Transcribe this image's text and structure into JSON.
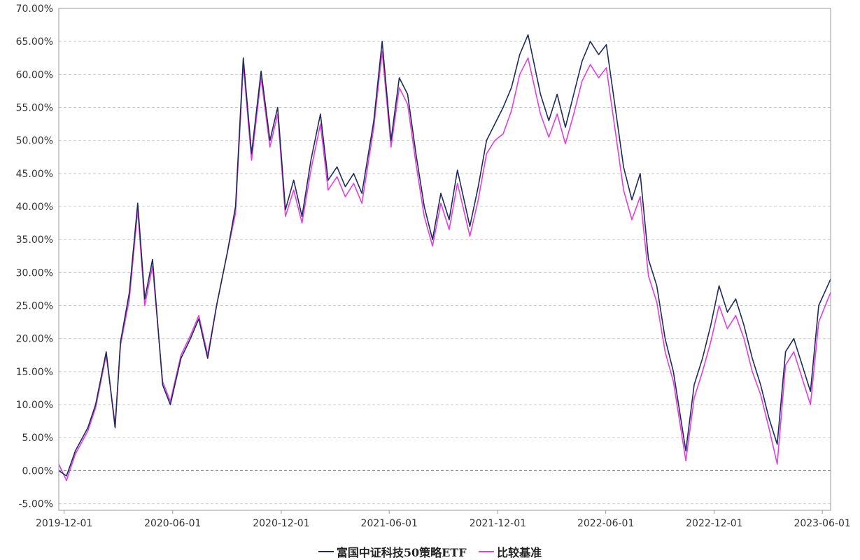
{
  "chart_data": {
    "type": "line",
    "title": "",
    "xlabel": "",
    "ylabel": "",
    "x_ticks": [
      "2019-12-01",
      "2020-06-01",
      "2020-12-01",
      "2021-06-01",
      "2021-12-01",
      "2022-06-01",
      "2022-12-01",
      "2023-06-01"
    ],
    "y_ticks": [
      "70.00%",
      "65.00%",
      "60.00%",
      "55.00%",
      "50.00%",
      "45.00%",
      "40.00%",
      "35.00%",
      "30.00%",
      "25.00%",
      "20.00%",
      "15.00%",
      "10.00%",
      "5.00%",
      "0.00%",
      "-5.00%"
    ],
    "xlim": [
      "2019-11-22",
      "2023-06-15"
    ],
    "ylim": [
      -6,
      70
    ],
    "grid": true,
    "legend_position": "bottom",
    "series": [
      {
        "name": "富国中证科技50策略ETF",
        "color": "#1f2a5c",
        "points": [
          [
            "2019-11-22",
            0.0
          ],
          [
            "2019-12-05",
            -0.8
          ],
          [
            "2019-12-20",
            3.0
          ],
          [
            "2020-01-10",
            6.5
          ],
          [
            "2020-01-23",
            10.0
          ],
          [
            "2020-02-10",
            18.0
          ],
          [
            "2020-02-25",
            6.5
          ],
          [
            "2020-03-05",
            19.5
          ],
          [
            "2020-03-20",
            27.0
          ],
          [
            "2020-04-03",
            40.5
          ],
          [
            "2020-04-15",
            26.0
          ],
          [
            "2020-04-28",
            32.0
          ],
          [
            "2020-05-15",
            13.0
          ],
          [
            "2020-05-28",
            10.0
          ],
          [
            "2020-06-15",
            17.0
          ],
          [
            "2020-07-01",
            20.0
          ],
          [
            "2020-07-15",
            23.0
          ],
          [
            "2020-07-30",
            17.0
          ],
          [
            "2020-08-14",
            25.0
          ],
          [
            "2020-09-01",
            33.0
          ],
          [
            "2020-09-15",
            40.0
          ],
          [
            "2020-09-28",
            62.5
          ],
          [
            "2020-10-12",
            48.0
          ],
          [
            "2020-10-28",
            60.5
          ],
          [
            "2020-11-12",
            50.0
          ],
          [
            "2020-11-25",
            55.0
          ],
          [
            "2020-12-08",
            39.5
          ],
          [
            "2020-12-22",
            44.0
          ],
          [
            "2021-01-05",
            38.5
          ],
          [
            "2021-01-20",
            47.0
          ],
          [
            "2021-02-05",
            54.0
          ],
          [
            "2021-02-18",
            44.0
          ],
          [
            "2021-03-05",
            46.0
          ],
          [
            "2021-03-19",
            43.0
          ],
          [
            "2021-04-02",
            45.0
          ],
          [
            "2021-04-16",
            42.0
          ],
          [
            "2021-05-06",
            53.0
          ],
          [
            "2021-05-20",
            65.0
          ],
          [
            "2021-06-04",
            50.0
          ],
          [
            "2021-06-18",
            59.5
          ],
          [
            "2021-07-02",
            57.0
          ],
          [
            "2021-07-16",
            48.0
          ],
          [
            "2021-07-30",
            40.0
          ],
          [
            "2021-08-13",
            35.0
          ],
          [
            "2021-08-27",
            42.0
          ],
          [
            "2021-09-10",
            38.0
          ],
          [
            "2021-09-24",
            45.5
          ],
          [
            "2021-10-15",
            37.0
          ],
          [
            "2021-10-29",
            43.0
          ],
          [
            "2021-11-12",
            50.0
          ],
          [
            "2021-11-26",
            52.5
          ],
          [
            "2021-12-10",
            55.0
          ],
          [
            "2021-12-24",
            58.0
          ],
          [
            "2022-01-07",
            63.0
          ],
          [
            "2022-01-21",
            66.0
          ],
          [
            "2022-02-11",
            57.0
          ],
          [
            "2022-02-25",
            53.0
          ],
          [
            "2022-03-11",
            57.0
          ],
          [
            "2022-03-25",
            52.0
          ],
          [
            "2022-04-08",
            57.0
          ],
          [
            "2022-04-22",
            62.0
          ],
          [
            "2022-05-06",
            65.0
          ],
          [
            "2022-05-20",
            63.0
          ],
          [
            "2022-06-02",
            64.5
          ],
          [
            "2022-06-17",
            55.0
          ],
          [
            "2022-07-01",
            46.0
          ],
          [
            "2022-07-15",
            41.0
          ],
          [
            "2022-07-29",
            45.0
          ],
          [
            "2022-08-12",
            32.0
          ],
          [
            "2022-08-26",
            28.0
          ],
          [
            "2022-09-09",
            20.0
          ],
          [
            "2022-09-23",
            15.0
          ],
          [
            "2022-10-14",
            3.0
          ],
          [
            "2022-10-28",
            13.0
          ],
          [
            "2022-11-11",
            17.0
          ],
          [
            "2022-11-25",
            22.0
          ],
          [
            "2022-12-09",
            28.0
          ],
          [
            "2022-12-23",
            24.0
          ],
          [
            "2023-01-06",
            26.0
          ],
          [
            "2023-01-20",
            22.0
          ],
          [
            "2023-02-03",
            17.0
          ],
          [
            "2023-02-17",
            13.0
          ],
          [
            "2023-03-03",
            8.0
          ],
          [
            "2023-03-17",
            4.0
          ],
          [
            "2023-03-31",
            18.0
          ],
          [
            "2023-04-14",
            20.0
          ],
          [
            "2023-04-28",
            16.0
          ],
          [
            "2023-05-12",
            12.0
          ],
          [
            "2023-05-26",
            25.0
          ],
          [
            "2023-06-15",
            29.0
          ]
        ]
      },
      {
        "name": "比较基准",
        "color": "#e040e0",
        "points": [
          [
            "2019-11-22",
            1.0
          ],
          [
            "2019-12-05",
            -1.5
          ],
          [
            "2019-12-20",
            2.5
          ],
          [
            "2020-01-10",
            6.0
          ],
          [
            "2020-01-23",
            9.5
          ],
          [
            "2020-02-10",
            17.5
          ],
          [
            "2020-02-25",
            7.0
          ],
          [
            "2020-03-05",
            19.0
          ],
          [
            "2020-03-20",
            26.0
          ],
          [
            "2020-04-03",
            39.5
          ],
          [
            "2020-04-15",
            25.0
          ],
          [
            "2020-04-28",
            31.0
          ],
          [
            "2020-05-15",
            13.5
          ],
          [
            "2020-05-28",
            10.5
          ],
          [
            "2020-06-15",
            17.5
          ],
          [
            "2020-07-01",
            20.5
          ],
          [
            "2020-07-15",
            23.5
          ],
          [
            "2020-07-30",
            17.5
          ],
          [
            "2020-08-14",
            25.0
          ],
          [
            "2020-09-01",
            33.0
          ],
          [
            "2020-09-15",
            39.0
          ],
          [
            "2020-09-28",
            61.5
          ],
          [
            "2020-10-12",
            47.0
          ],
          [
            "2020-10-28",
            59.5
          ],
          [
            "2020-11-12",
            49.0
          ],
          [
            "2020-11-25",
            54.0
          ],
          [
            "2020-12-08",
            38.5
          ],
          [
            "2020-12-22",
            42.5
          ],
          [
            "2021-01-05",
            37.5
          ],
          [
            "2021-01-20",
            45.5
          ],
          [
            "2021-02-05",
            52.5
          ],
          [
            "2021-02-18",
            42.5
          ],
          [
            "2021-03-05",
            44.5
          ],
          [
            "2021-03-19",
            41.5
          ],
          [
            "2021-04-02",
            43.5
          ],
          [
            "2021-04-16",
            40.5
          ],
          [
            "2021-05-06",
            52.0
          ],
          [
            "2021-05-20",
            63.5
          ],
          [
            "2021-06-04",
            49.0
          ],
          [
            "2021-06-18",
            58.0
          ],
          [
            "2021-07-02",
            55.5
          ],
          [
            "2021-07-16",
            46.5
          ],
          [
            "2021-07-30",
            38.5
          ],
          [
            "2021-08-13",
            34.0
          ],
          [
            "2021-08-27",
            40.5
          ],
          [
            "2021-09-10",
            36.5
          ],
          [
            "2021-09-24",
            43.5
          ],
          [
            "2021-10-15",
            35.5
          ],
          [
            "2021-10-29",
            41.0
          ],
          [
            "2021-11-12",
            48.0
          ],
          [
            "2021-11-26",
            50.0
          ],
          [
            "2021-12-10",
            51.0
          ],
          [
            "2021-12-24",
            54.5
          ],
          [
            "2022-01-07",
            60.0
          ],
          [
            "2022-01-21",
            62.5
          ],
          [
            "2022-02-11",
            54.0
          ],
          [
            "2022-02-25",
            50.5
          ],
          [
            "2022-03-11",
            54.0
          ],
          [
            "2022-03-25",
            49.5
          ],
          [
            "2022-04-08",
            54.0
          ],
          [
            "2022-04-22",
            59.0
          ],
          [
            "2022-05-06",
            61.5
          ],
          [
            "2022-05-20",
            59.5
          ],
          [
            "2022-06-02",
            61.0
          ],
          [
            "2022-06-17",
            51.5
          ],
          [
            "2022-07-01",
            42.5
          ],
          [
            "2022-07-15",
            38.0
          ],
          [
            "2022-07-29",
            41.5
          ],
          [
            "2022-08-12",
            29.5
          ],
          [
            "2022-08-26",
            25.5
          ],
          [
            "2022-09-09",
            18.0
          ],
          [
            "2022-09-23",
            13.5
          ],
          [
            "2022-10-14",
            1.5
          ],
          [
            "2022-10-28",
            11.0
          ],
          [
            "2022-11-11",
            15.0
          ],
          [
            "2022-11-25",
            19.5
          ],
          [
            "2022-12-09",
            25.0
          ],
          [
            "2022-12-23",
            21.5
          ],
          [
            "2023-01-06",
            23.5
          ],
          [
            "2023-01-20",
            20.0
          ],
          [
            "2023-02-03",
            15.0
          ],
          [
            "2023-02-17",
            11.5
          ],
          [
            "2023-03-03",
            6.5
          ],
          [
            "2023-03-17",
            1.0
          ],
          [
            "2023-03-31",
            16.0
          ],
          [
            "2023-04-14",
            18.0
          ],
          [
            "2023-04-28",
            14.0
          ],
          [
            "2023-05-12",
            10.0
          ],
          [
            "2023-05-26",
            22.5
          ],
          [
            "2023-06-15",
            27.0
          ]
        ]
      }
    ]
  }
}
